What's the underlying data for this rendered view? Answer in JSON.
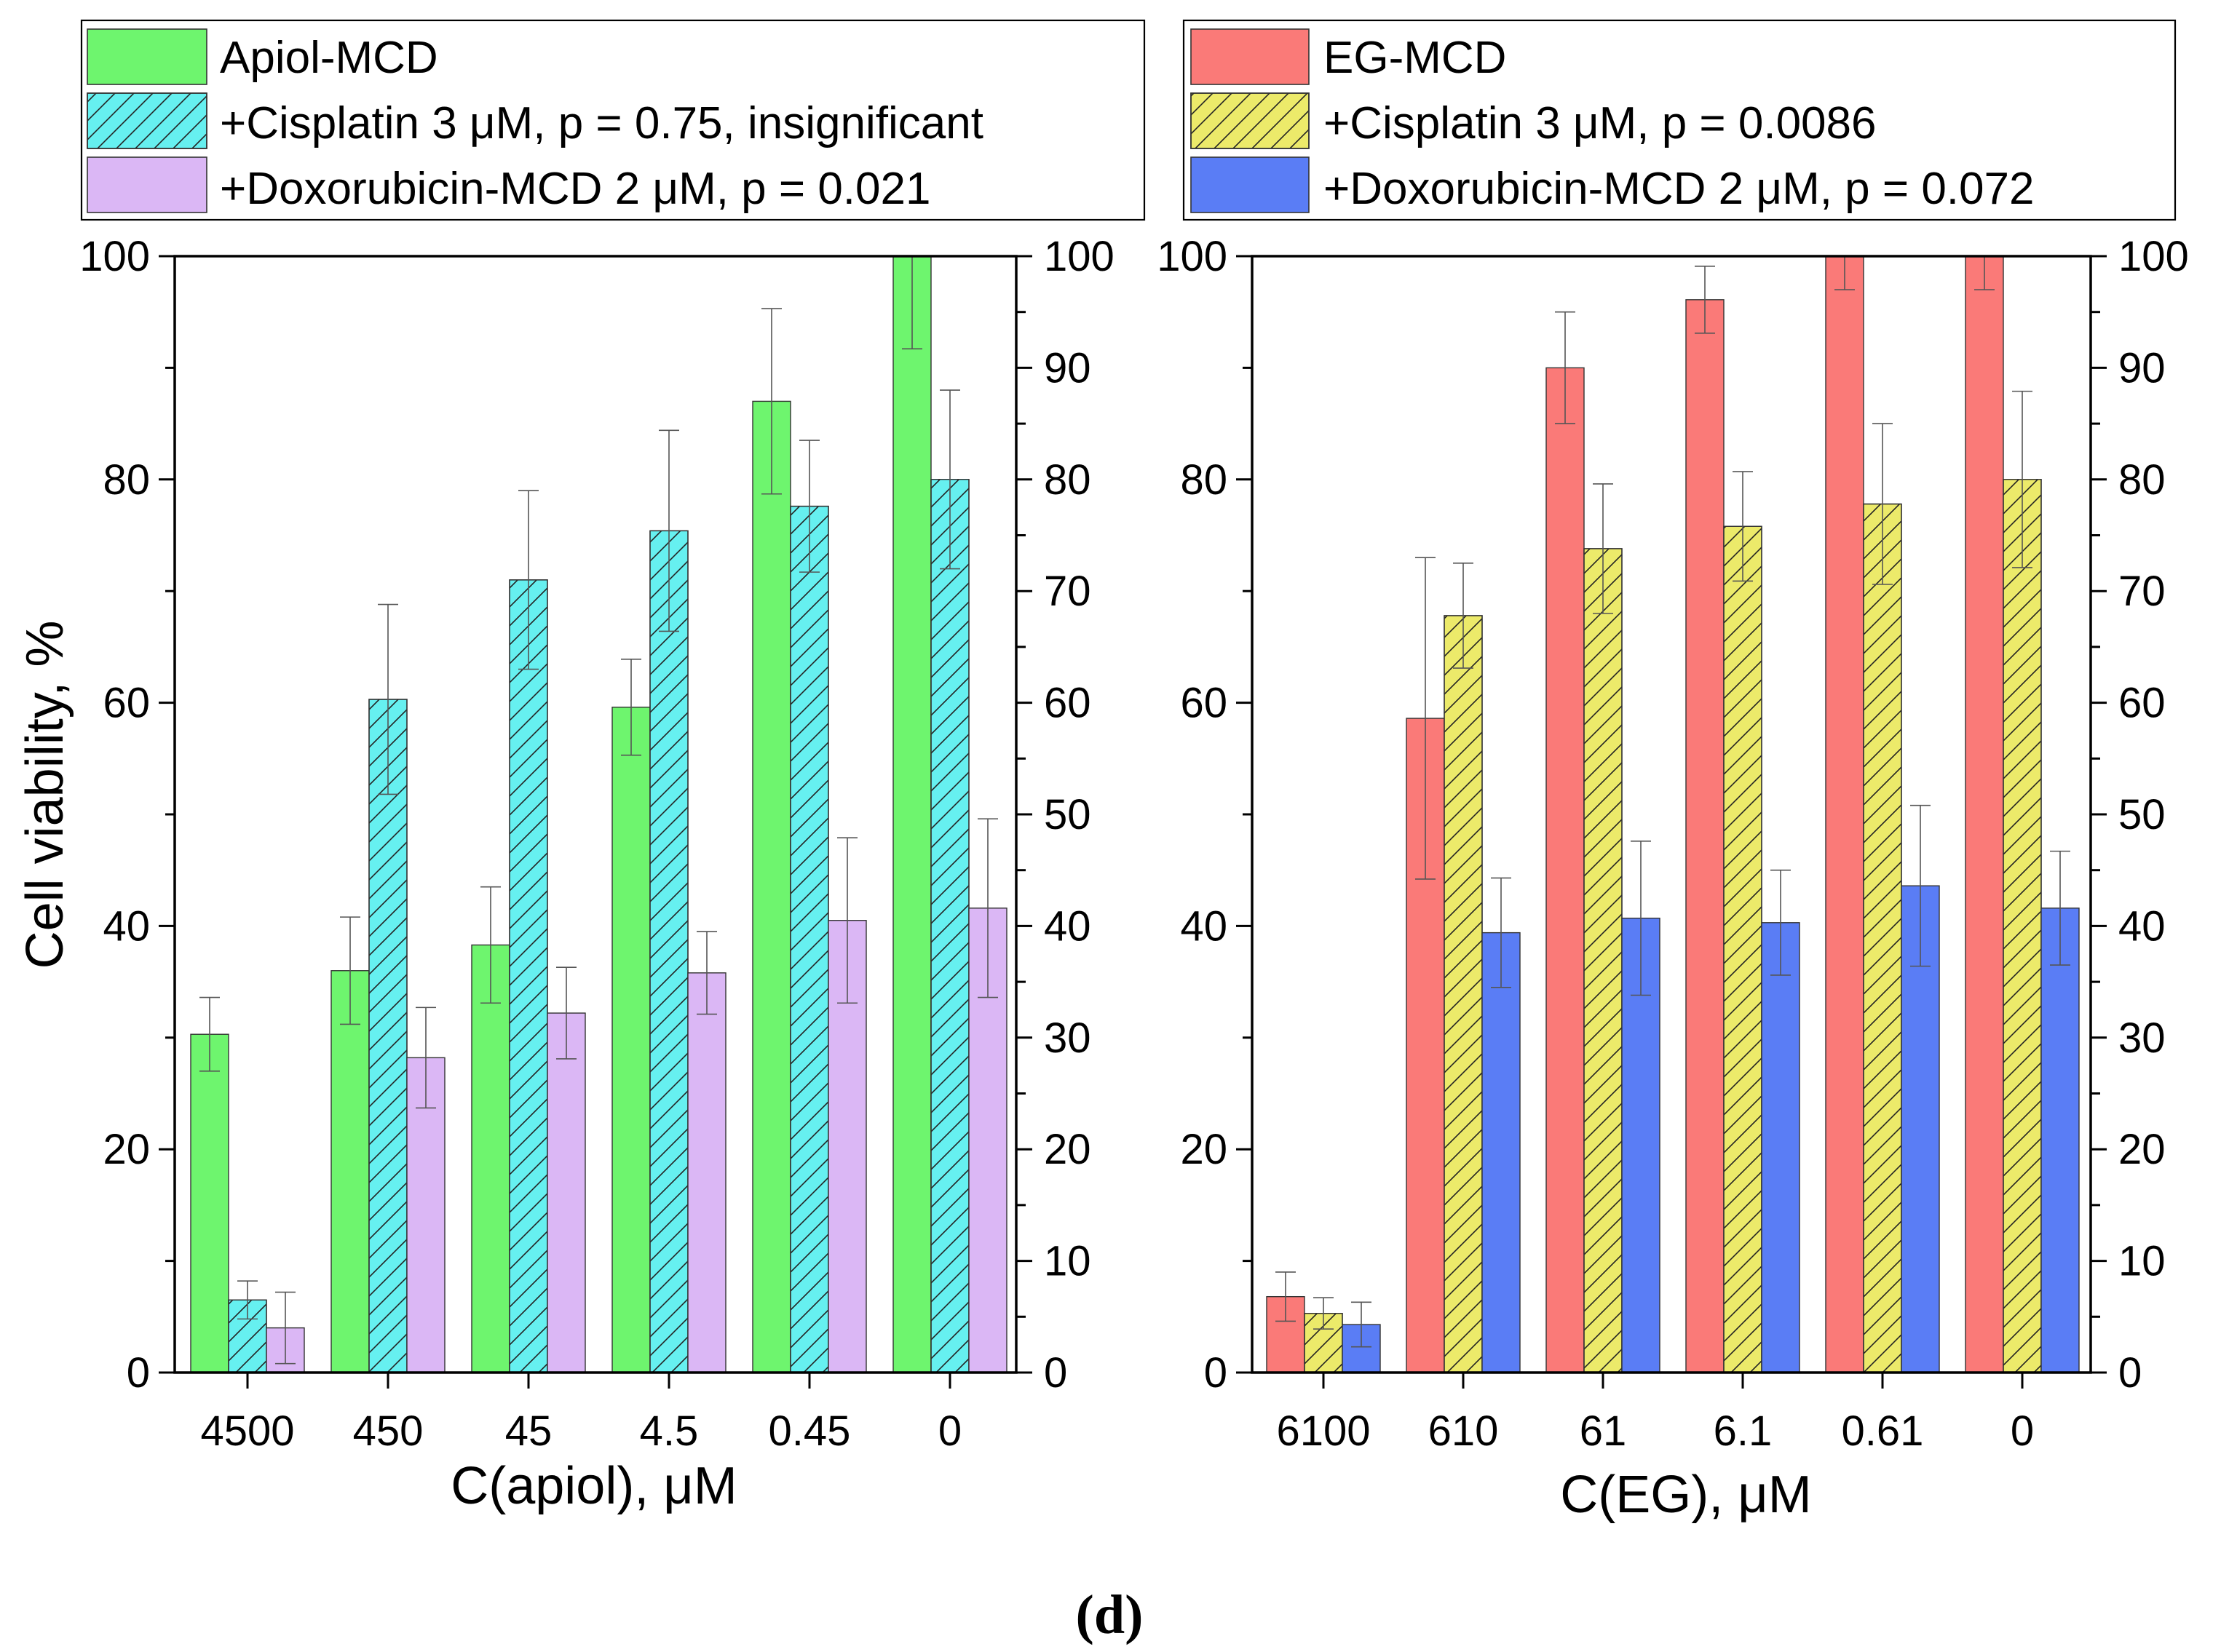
{
  "figure_label": "(d)",
  "y_axis_title": "Cell viability, %",
  "chart_data": [
    {
      "type": "bar",
      "panel": "left",
      "xlabel": "C(apiol), μM",
      "ylabel": "Cell viability, %",
      "categories": [
        "4500",
        "450",
        "45",
        "4.5",
        "0.45",
        "0"
      ],
      "ylim": [
        0,
        100
      ],
      "yticks": [
        "0",
        "20",
        "40",
        "60",
        "80",
        "100"
      ],
      "right_yticks": [
        "0",
        "10",
        "20",
        "30",
        "40",
        "50",
        "60",
        "70",
        "80",
        "90",
        "100"
      ],
      "legend_position": "top-left",
      "series": [
        {
          "name": "Apiol-MCD",
          "color": "#6ef56e",
          "hatched": false,
          "values": [
            30.3,
            36,
            38.3,
            59.6,
            87,
            100
          ],
          "errors": [
            3.3,
            4.8,
            5.2,
            4.3,
            8.3,
            8.3
          ]
        },
        {
          "name": "+Cisplatin 3 μM, p = 0.75, insignificant",
          "color": "#66f0f0",
          "hatched": true,
          "values": [
            6.5,
            60.3,
            71,
            75.4,
            77.6,
            80
          ],
          "errors": [
            1.7,
            8.5,
            8,
            9,
            5.9,
            8
          ]
        },
        {
          "name": "+Doxorubicin-MCD 2 μM, p = 0.021",
          "color": "#dbb7f5",
          "hatched": false,
          "values": [
            4,
            28.2,
            32.2,
            35.8,
            40.5,
            41.6
          ],
          "errors": [
            3.2,
            4.5,
            4.1,
            3.7,
            7.4,
            8
          ]
        }
      ]
    },
    {
      "type": "bar",
      "panel": "right",
      "xlabel": "C(EG), μM",
      "ylabel": "Cell viability, %",
      "categories": [
        "6100",
        "610",
        "61",
        "6.1",
        "0.61",
        "0"
      ],
      "ylim": [
        0,
        100
      ],
      "yticks": [
        "0",
        "20",
        "40",
        "60",
        "80",
        "100"
      ],
      "right_yticks": [
        "0",
        "10",
        "20",
        "30",
        "40",
        "50",
        "60",
        "70",
        "80",
        "90",
        "100"
      ],
      "legend_position": "top-right",
      "series": [
        {
          "name": "EG-MCD",
          "color": "#fa7a78",
          "hatched": false,
          "values": [
            6.8,
            58.6,
            90,
            96.1,
            100,
            100
          ],
          "errors": [
            2.2,
            14.4,
            5,
            3,
            3,
            3
          ]
        },
        {
          "name": "+Cisplatin 3 μM, p = 0.0086",
          "color": "#ecea6a",
          "hatched": true,
          "values": [
            5.3,
            67.8,
            73.8,
            75.8,
            77.8,
            80
          ],
          "errors": [
            1.4,
            4.7,
            5.8,
            4.9,
            7.2,
            7.9
          ]
        },
        {
          "name": "+Doxorubicin-MCD 2 μM, p = 0.072",
          "color": "#5a7df5",
          "hatched": false,
          "values": [
            4.3,
            39.4,
            40.7,
            40.3,
            43.6,
            41.6
          ],
          "errors": [
            2,
            4.9,
            6.9,
            4.7,
            7.2,
            5.1
          ]
        }
      ]
    }
  ]
}
